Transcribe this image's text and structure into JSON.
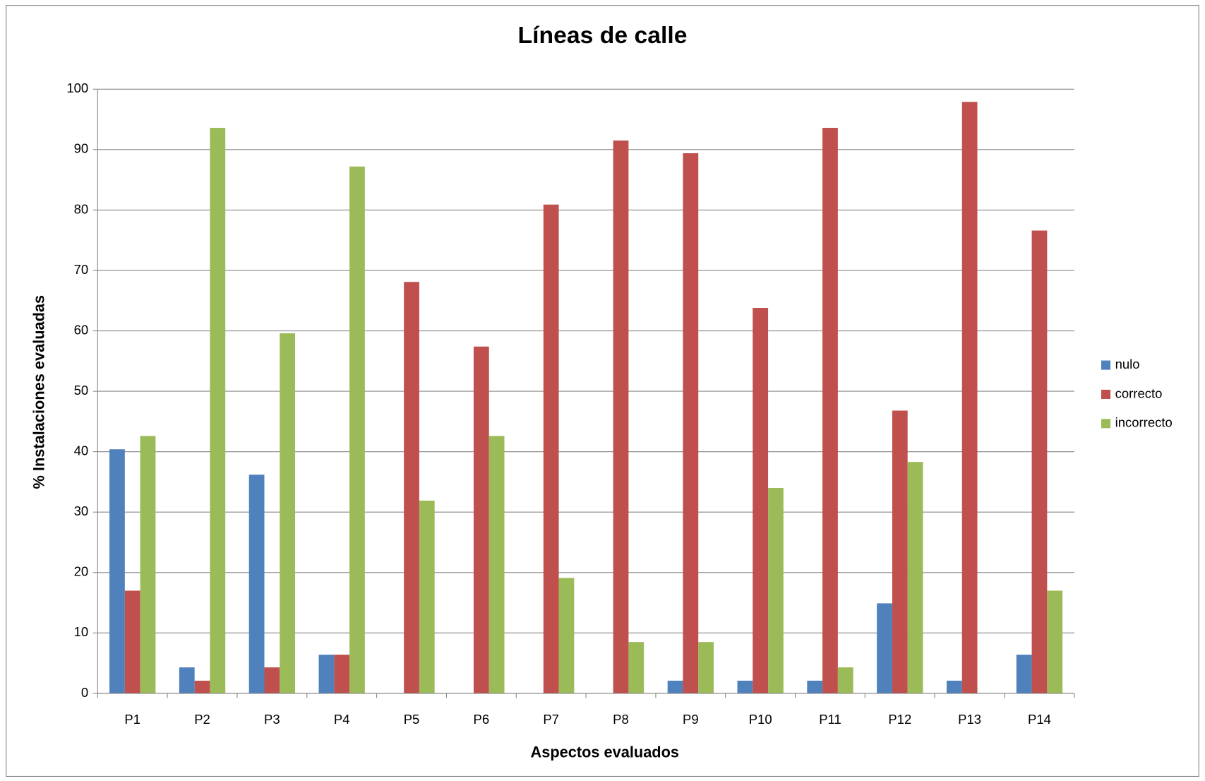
{
  "chart_data": {
    "type": "bar",
    "title": "Líneas de calle",
    "xlabel": "Aspectos evaluados",
    "ylabel": "% Instalaciones evaluadas",
    "categories": [
      "P1",
      "P2",
      "P3",
      "P4",
      "P5",
      "P6",
      "P7",
      "P8",
      "P9",
      "P10",
      "P11",
      "P12",
      "P13",
      "P14"
    ],
    "series": [
      {
        "name": "nulo",
        "color": "#4f81bd",
        "values": [
          40.4,
          4.3,
          36.2,
          6.4,
          0,
          0,
          0,
          0,
          2.1,
          2.1,
          2.1,
          14.9,
          2.1,
          6.4
        ]
      },
      {
        "name": "correcto",
        "color": "#c0504d",
        "values": [
          17,
          2.1,
          4.3,
          6.4,
          68.1,
          57.4,
          80.9,
          91.5,
          89.4,
          63.8,
          93.6,
          46.8,
          97.9,
          76.6
        ]
      },
      {
        "name": "incorrecto",
        "color": "#9bbb59",
        "values": [
          42.6,
          93.6,
          59.6,
          87.2,
          31.9,
          42.6,
          19.1,
          8.5,
          8.5,
          34.0,
          4.3,
          38.3,
          0,
          17.0
        ]
      }
    ],
    "ylim": [
      0,
      100
    ],
    "yticks": [
      0,
      10,
      20,
      30,
      40,
      50,
      60,
      70,
      80,
      90,
      100
    ],
    "grid": true,
    "legend": "right"
  }
}
